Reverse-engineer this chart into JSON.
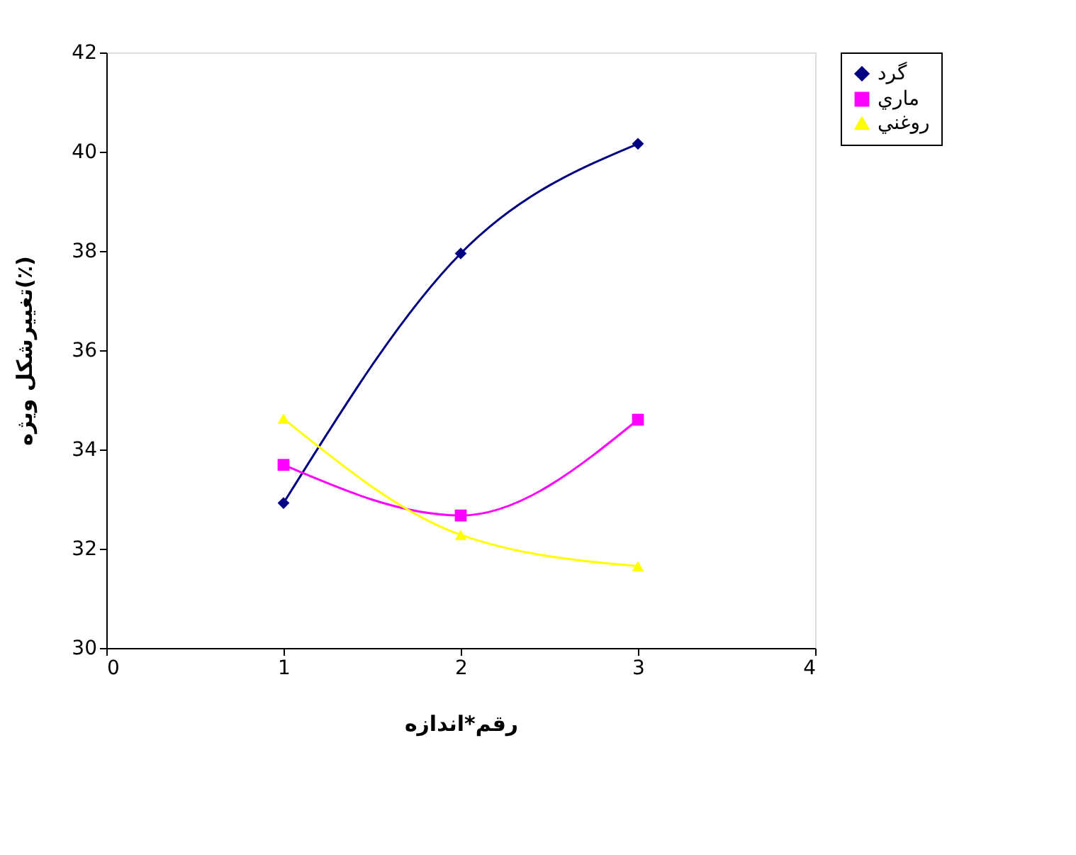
{
  "chart_data": {
    "type": "line",
    "xlabel": "رقم*اندازه",
    "ylabel": "تغييرشكل ويژه(٪)",
    "x": [
      1,
      2,
      3
    ],
    "series": [
      {
        "name": "گرد",
        "color": "#000080",
        "marker": "diamond",
        "values": [
          32.92,
          37.95,
          40.16
        ]
      },
      {
        "name": "ماري",
        "color": "#ff00ff",
        "marker": "square",
        "values": [
          33.69,
          32.67,
          34.6
        ]
      },
      {
        "name": "روغني",
        "color": "#ffff00",
        "marker": "triangle",
        "values": [
          34.62,
          32.28,
          31.65
        ]
      }
    ],
    "xlim": [
      0,
      4
    ],
    "xticks": [
      0,
      1,
      2,
      3,
      4
    ],
    "ylim": [
      30,
      42
    ],
    "yticks": [
      30,
      32,
      34,
      36,
      38,
      40,
      42
    ],
    "grid": false,
    "legend": "right",
    "line_style": "solid"
  }
}
